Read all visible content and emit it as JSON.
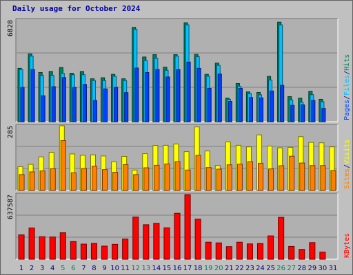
{
  "title": "Daily usage for October 2024",
  "colors": {
    "hits": "#00805c",
    "files": "#00c0ff",
    "pages": "#0040ff",
    "visits": "#ffff00",
    "sites": "#ff8000",
    "kbytes": "#ff0000",
    "weekend_day": "#00805c",
    "weekday": "#000080",
    "title": "#0000a0",
    "background": "#c0c0c0",
    "panel": "#b0b0b0"
  },
  "chart_data": [
    {
      "type": "bar",
      "panel": "hits-files-pages",
      "ymax_label": "6828",
      "ylim": [
        0,
        6828
      ],
      "legend": [
        {
          "name": "Pages",
          "color": "#0040ff"
        },
        {
          "name": "/",
          "color": "#000080"
        },
        {
          "name": "Files",
          "color": "#00c0ff"
        },
        {
          "name": "/",
          "color": "#000080"
        },
        {
          "name": "Hits",
          "color": "#00805c"
        }
      ],
      "categories": [
        "1",
        "2",
        "3",
        "4",
        "5",
        "6",
        "7",
        "8",
        "9",
        "10",
        "11",
        "12",
        "13",
        "14",
        "15",
        "16",
        "17",
        "18",
        "19",
        "20",
        "21",
        "22",
        "23",
        "24",
        "25",
        "26",
        "27",
        "28",
        "29",
        "30",
        "31"
      ],
      "series": [
        {
          "name": "Hits",
          "values": [
            3580,
            4550,
            3300,
            3370,
            3630,
            3250,
            3370,
            2880,
            2950,
            3180,
            2880,
            6330,
            4340,
            4500,
            3660,
            4500,
            6640,
            4520,
            3180,
            3930,
            1580,
            2560,
            2000,
            1960,
            3040,
            6680,
            1680,
            1580,
            2040,
            1500,
            0
          ]
        },
        {
          "name": "Files",
          "values": [
            3500,
            4400,
            3100,
            3100,
            3250,
            3150,
            3150,
            2760,
            2760,
            3050,
            2760,
            6200,
            4100,
            4250,
            3450,
            4400,
            6500,
            4360,
            3050,
            3780,
            1500,
            2380,
            1880,
            1800,
            2800,
            6500,
            1460,
            1310,
            1810,
            1340,
            0
          ]
        },
        {
          "name": "Pages",
          "values": [
            2300,
            3500,
            1740,
            2350,
            2960,
            2300,
            2500,
            1420,
            2200,
            2300,
            1950,
            3600,
            3300,
            3500,
            3000,
            3500,
            4000,
            3580,
            2240,
            3200,
            1360,
            2240,
            1620,
            1600,
            2060,
            2440,
            1100,
            1130,
            1420,
            890,
            0
          ]
        }
      ]
    },
    {
      "type": "bar",
      "panel": "visits-sites",
      "ymax_label": "285",
      "ylim": [
        0,
        285
      ],
      "legend": [
        {
          "name": "Sites",
          "color": "#ff8000"
        },
        {
          "name": "/",
          "color": "#000080"
        },
        {
          "name": "Visits",
          "color": "#ffff00"
        }
      ],
      "categories": [
        "1",
        "2",
        "3",
        "4",
        "5",
        "6",
        "7",
        "8",
        "9",
        "10",
        "11",
        "12",
        "13",
        "14",
        "15",
        "16",
        "17",
        "18",
        "19",
        "20",
        "21",
        "22",
        "23",
        "24",
        "25",
        "26",
        "27",
        "28",
        "29",
        "30",
        "31"
      ],
      "series": [
        {
          "name": "Visits",
          "values": [
            105,
            115,
            148,
            168,
            285,
            161,
            155,
            157,
            152,
            126,
            150,
            90,
            162,
            198,
            199,
            205,
            171,
            280,
            174,
            110,
            214,
            199,
            192,
            245,
            196,
            188,
            190,
            237,
            212,
            210,
            192
          ]
        },
        {
          "name": "Sites",
          "values": [
            70,
            82,
            86,
            96,
            220,
            78,
            97,
            107,
            92,
            80,
            114,
            70,
            100,
            111,
            117,
            127,
            90,
            155,
            101,
            94,
            113,
            116,
            127,
            120,
            95,
            109,
            151,
            121,
            110,
            110,
            88
          ]
        }
      ]
    },
    {
      "type": "bar",
      "panel": "kbytes",
      "ymax_label": "637587",
      "ylim": [
        0,
        637587
      ],
      "legend": [
        {
          "name": "KBytes",
          "color": "#ff0000"
        }
      ],
      "categories": [
        "1",
        "2",
        "3",
        "4",
        "5",
        "6",
        "7",
        "8",
        "9",
        "10",
        "11",
        "12",
        "13",
        "14",
        "15",
        "16",
        "17",
        "18",
        "19",
        "20",
        "21",
        "22",
        "23",
        "24",
        "25",
        "26",
        "27",
        "28",
        "29",
        "30",
        "31"
      ],
      "series": [
        {
          "name": "KBytes",
          "values": [
            240000,
            308000,
            222000,
            219000,
            261000,
            174000,
            149000,
            156000,
            129000,
            147000,
            199000,
            416000,
            340000,
            354000,
            310000,
            453000,
            637587,
            395000,
            168000,
            161000,
            124000,
            168000,
            151000,
            155000,
            230000,
            413000,
            126000,
            97000,
            164000,
            70000,
            0
          ]
        }
      ]
    }
  ],
  "x_axis": {
    "labels": [
      "1",
      "2",
      "3",
      "4",
      "5",
      "6",
      "7",
      "8",
      "9",
      "10",
      "11",
      "12",
      "13",
      "14",
      "15",
      "16",
      "17",
      "18",
      "19",
      "20",
      "21",
      "22",
      "23",
      "24",
      "25",
      "26",
      "27",
      "28",
      "29",
      "30",
      "31"
    ],
    "weekend": [
      false,
      false,
      false,
      false,
      true,
      true,
      false,
      false,
      false,
      false,
      false,
      true,
      true,
      false,
      false,
      false,
      false,
      false,
      true,
      true,
      false,
      false,
      false,
      false,
      false,
      true,
      true,
      false,
      false,
      false,
      false
    ]
  }
}
